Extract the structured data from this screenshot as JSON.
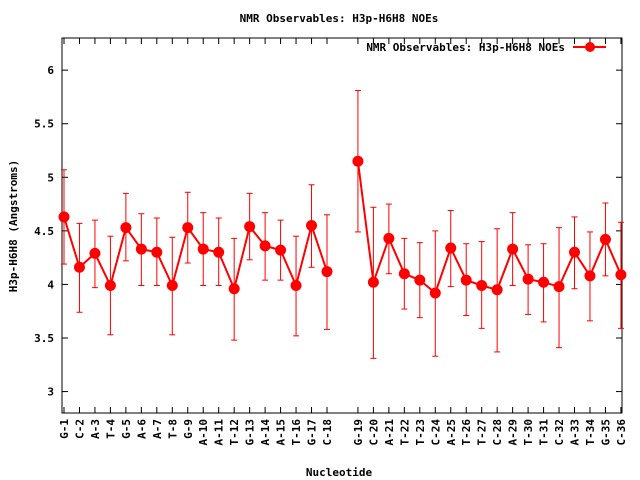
{
  "chart_data": {
    "type": "line",
    "title": "NMR Observables: H3p-H6H8 NOEs",
    "xlabel": "Nucleotide",
    "ylabel": "H3p-H6H8 (Angstroms)",
    "ylim": [
      2.8,
      6.3
    ],
    "yticks": [
      "3",
      "3.5",
      "4",
      "4.5",
      "5",
      "5.5",
      "6"
    ],
    "legend": {
      "position": "top-right",
      "entries": [
        "NMR Observables: H3p-H6H8 NOEs"
      ]
    },
    "series_color": "#ff0000",
    "series": [
      {
        "name": "NMR Observables: H3p-H6H8 NOEs",
        "segments": [
          [
            {
              "label": "G-1",
              "y": 4.63,
              "low": 4.19,
              "high": 5.07
            },
            {
              "label": "C-2",
              "y": 4.16,
              "low": 3.74,
              "high": 4.57
            },
            {
              "label": "A-3",
              "y": 4.29,
              "low": 3.97,
              "high": 4.6
            },
            {
              "label": "T-4",
              "y": 3.99,
              "low": 3.53,
              "high": 4.45
            },
            {
              "label": "G-5",
              "y": 4.53,
              "low": 4.22,
              "high": 4.85
            },
            {
              "label": "A-6",
              "y": 4.33,
              "low": 3.99,
              "high": 4.66
            },
            {
              "label": "A-7",
              "y": 4.3,
              "low": 3.99,
              "high": 4.62
            },
            {
              "label": "T-8",
              "y": 3.99,
              "low": 3.53,
              "high": 4.44
            },
            {
              "label": "G-9",
              "y": 4.53,
              "low": 4.2,
              "high": 4.86
            },
            {
              "label": "A-10",
              "y": 4.33,
              "low": 3.99,
              "high": 4.67
            },
            {
              "label": "A-11",
              "y": 4.3,
              "low": 3.99,
              "high": 4.62
            },
            {
              "label": "T-12",
              "y": 3.96,
              "low": 3.48,
              "high": 4.43
            },
            {
              "label": "G-13",
              "y": 4.54,
              "low": 4.23,
              "high": 4.85
            },
            {
              "label": "A-14",
              "y": 4.36,
              "low": 4.04,
              "high": 4.67
            },
            {
              "label": "A-15",
              "y": 4.32,
              "low": 4.04,
              "high": 4.6
            },
            {
              "label": "T-16",
              "y": 3.99,
              "low": 3.52,
              "high": 4.45
            },
            {
              "label": "G-17",
              "y": 4.55,
              "low": 4.16,
              "high": 4.93
            },
            {
              "label": "C-18",
              "y": 4.12,
              "low": 3.58,
              "high": 4.65
            }
          ],
          [
            {
              "label": "G-19",
              "y": 5.15,
              "low": 4.49,
              "high": 5.81
            },
            {
              "label": "C-20",
              "y": 4.02,
              "low": 3.31,
              "high": 4.72
            },
            {
              "label": "A-21",
              "y": 4.43,
              "low": 4.1,
              "high": 4.75
            },
            {
              "label": "T-22",
              "y": 4.1,
              "low": 3.77,
              "high": 4.43
            },
            {
              "label": "T-23",
              "y": 4.04,
              "low": 3.69,
              "high": 4.39
            },
            {
              "label": "C-24",
              "y": 3.92,
              "low": 3.33,
              "high": 4.5
            },
            {
              "label": "A-25",
              "y": 4.34,
              "low": 3.98,
              "high": 4.69
            },
            {
              "label": "T-26",
              "y": 4.04,
              "low": 3.71,
              "high": 4.38
            },
            {
              "label": "T-27",
              "y": 3.99,
              "low": 3.59,
              "high": 4.4
            },
            {
              "label": "C-28",
              "y": 3.95,
              "low": 3.37,
              "high": 4.52
            },
            {
              "label": "A-29",
              "y": 4.33,
              "low": 3.99,
              "high": 4.67
            },
            {
              "label": "T-30",
              "y": 4.05,
              "low": 3.72,
              "high": 4.37
            },
            {
              "label": "T-31",
              "y": 4.02,
              "low": 3.65,
              "high": 4.38
            },
            {
              "label": "C-32",
              "y": 3.98,
              "low": 3.41,
              "high": 4.53
            },
            {
              "label": "A-33",
              "y": 4.3,
              "low": 3.96,
              "high": 4.63
            },
            {
              "label": "T-34",
              "y": 4.08,
              "low": 3.66,
              "high": 4.49
            },
            {
              "label": "G-35",
              "y": 4.42,
              "low": 4.08,
              "high": 4.76
            },
            {
              "label": "C-36",
              "y": 4.09,
              "low": 3.59,
              "high": 4.58
            }
          ]
        ]
      }
    ]
  }
}
